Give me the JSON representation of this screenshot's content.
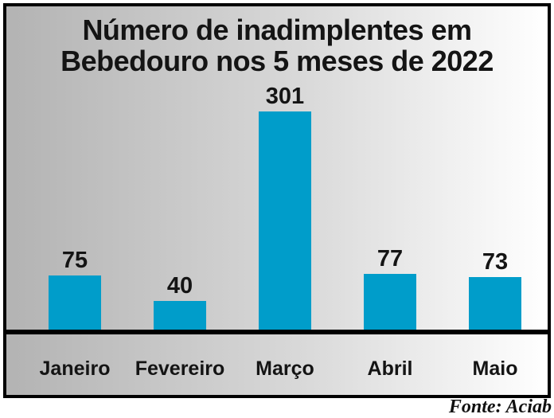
{
  "chart_data": {
    "type": "bar",
    "title": "Número de inadimplentes em Bebedouro nos 5 meses de 2022",
    "title_lines": [
      "Número de inadimplentes em",
      "Bebedouro nos 5 meses de 2022"
    ],
    "categories": [
      "Janeiro",
      "Fevereiro",
      "Março",
      "Abril",
      "Maio"
    ],
    "values": [
      75,
      40,
      301,
      77,
      73
    ],
    "source": "Fonte: Aciab",
    "xlabel": "",
    "ylabel": "",
    "ylim": [
      0,
      320
    ],
    "grid": false,
    "legend": false,
    "bar_color": "#009dca",
    "axis_line_color": "#000000",
    "background_gradient": [
      "#b3b3b3",
      "#ffffff"
    ]
  }
}
